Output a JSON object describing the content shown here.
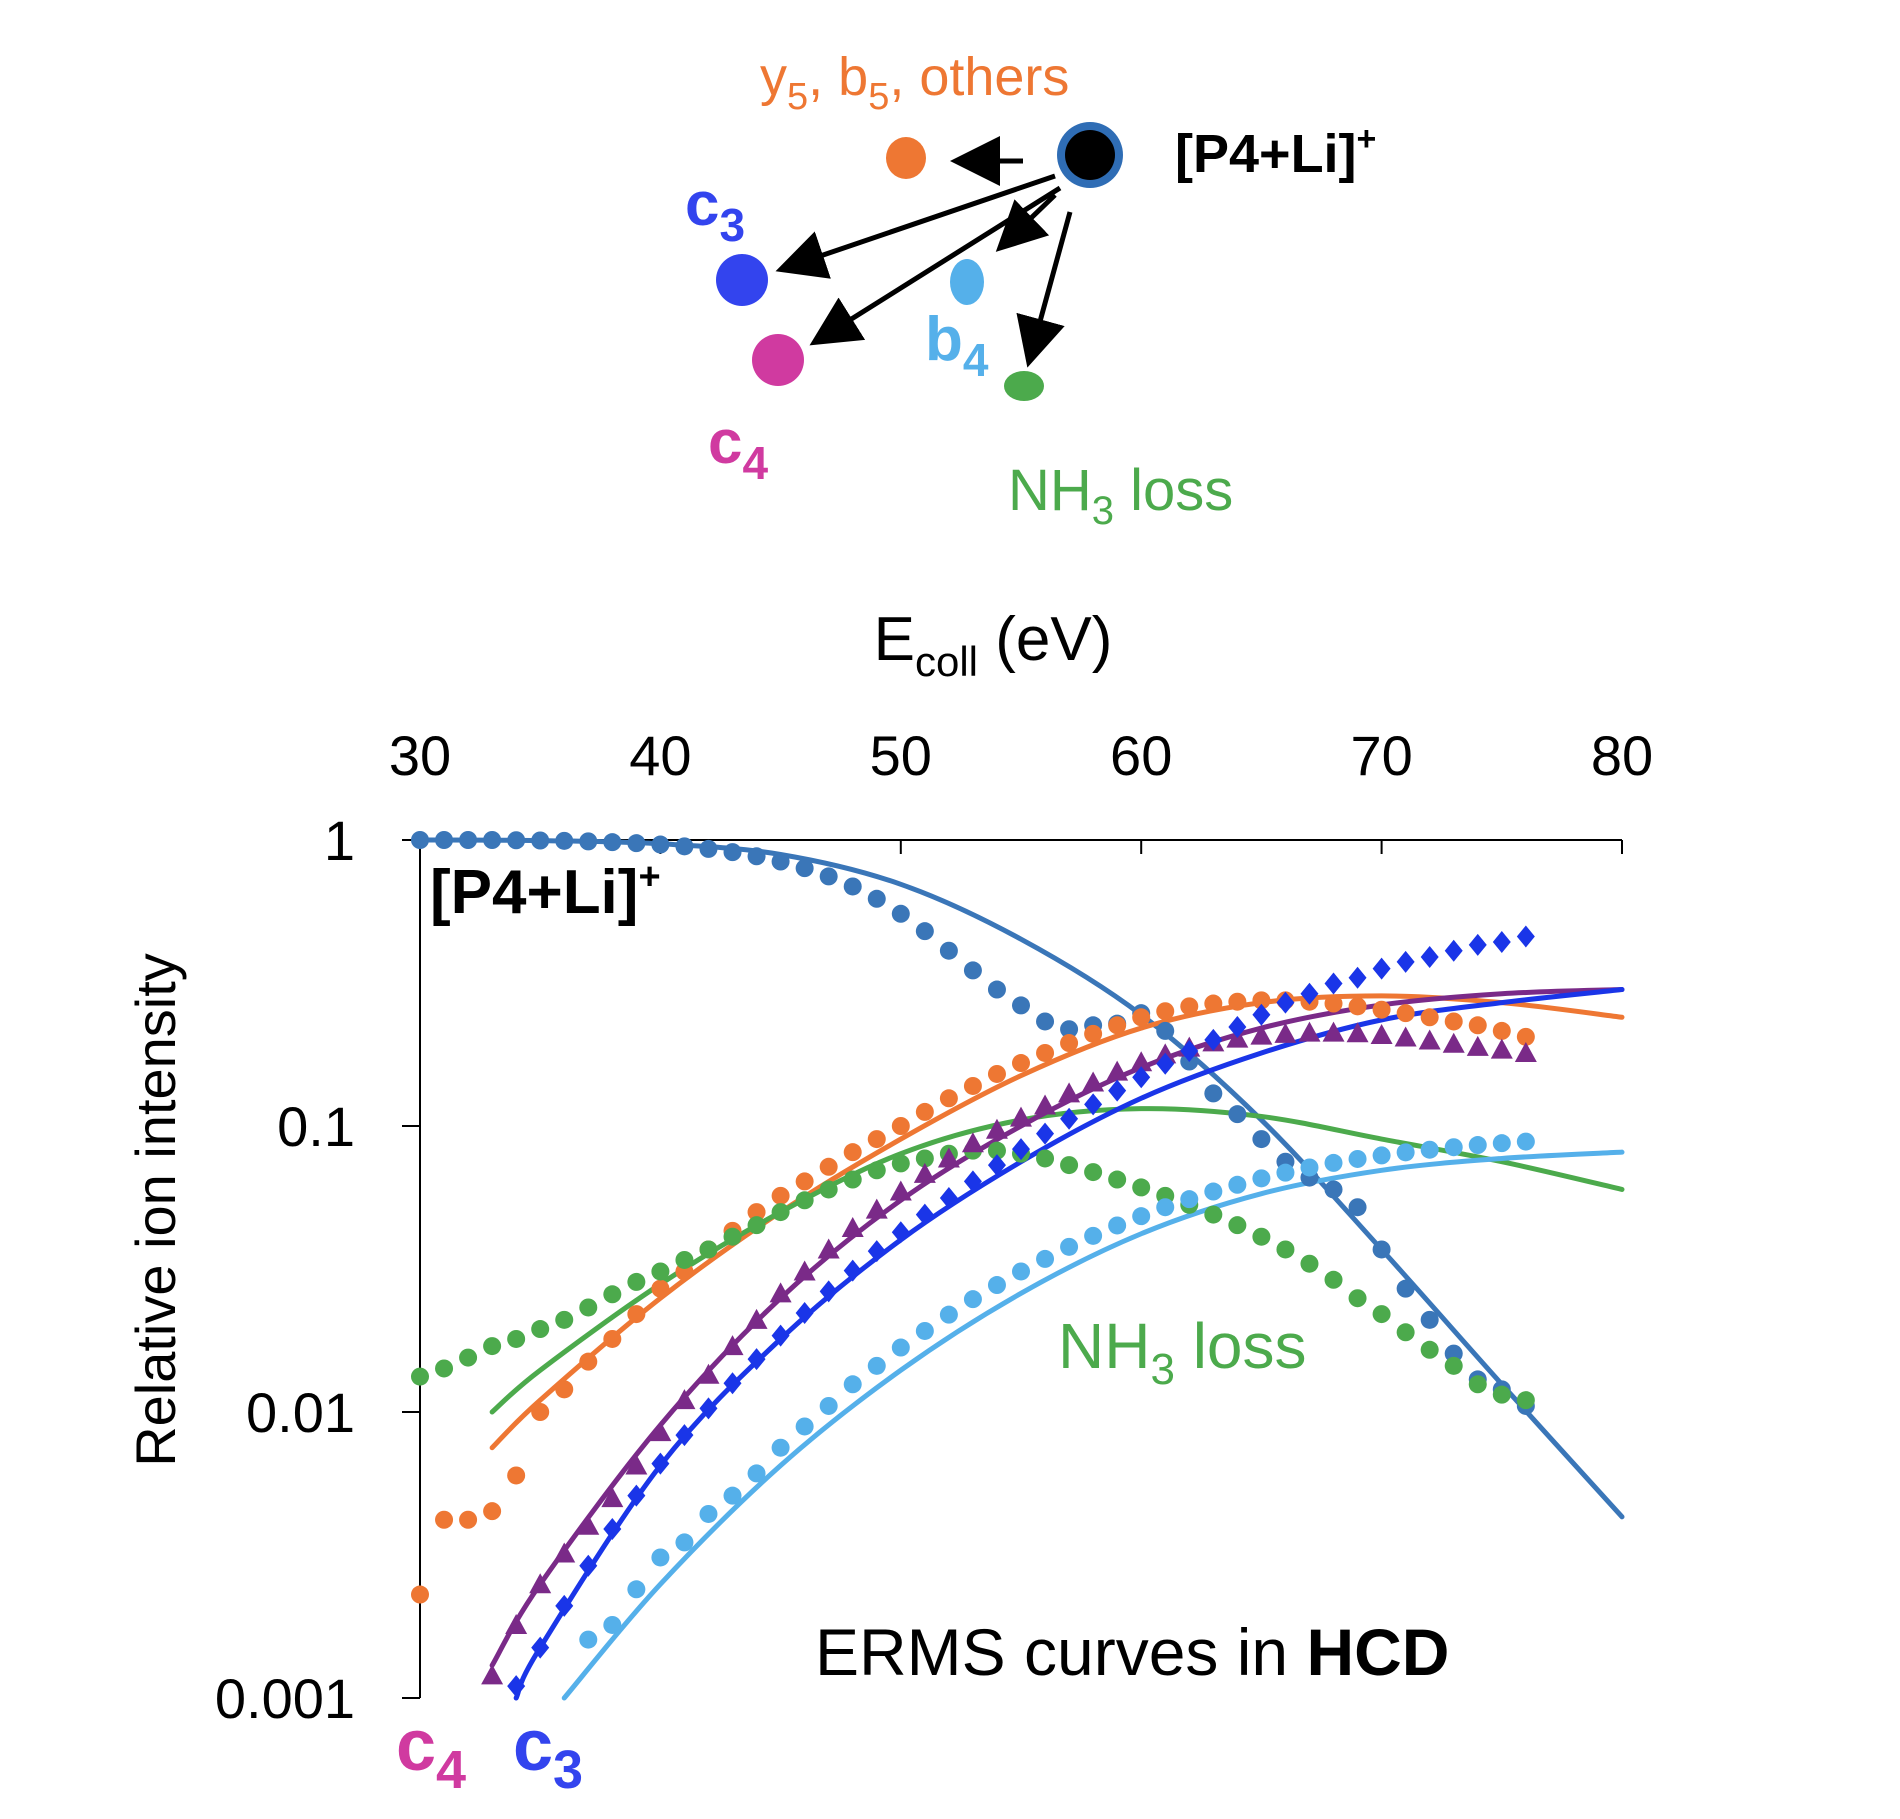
{
  "scheme": {
    "parent": {
      "label": "[P4+Li]",
      "charge": "+",
      "color": "#000000",
      "ring": "#2f6db5"
    },
    "products": [
      {
        "id": "others",
        "label": "y",
        "sub1": "5",
        "mid": ", b",
        "sub2": "5",
        "tail": ", others",
        "color": "#ee7733"
      },
      {
        "id": "c3",
        "label": "c",
        "sub": "3",
        "color": "#3344ee"
      },
      {
        "id": "b4",
        "label": "b",
        "sub": "4",
        "color": "#55b0ea"
      },
      {
        "id": "c4",
        "label": "c",
        "sub": "4",
        "color": "#d03aa0"
      },
      {
        "id": "nh3",
        "label": "NH",
        "sub": "3",
        "tail": " loss",
        "color": "#4caa4c"
      }
    ]
  },
  "chart_data": {
    "type": "scatter",
    "title": "",
    "xlabel": {
      "main": "E",
      "sub": "coll",
      "tail": " (eV)"
    },
    "ylabel": "Relative ion intensity",
    "xlim": [
      30,
      80
    ],
    "ylim": [
      0.001,
      1
    ],
    "yscale": "log",
    "x_axis_position": "top",
    "x_ticks": [
      "30",
      "40",
      "50",
      "60",
      "70",
      "80"
    ],
    "y_ticks": [
      "1",
      "0.1",
      "0.01",
      "0.001"
    ],
    "annotation": {
      "text": "ERMS curves in ",
      "bold": "HCD"
    },
    "labels": {
      "parent": {
        "text": "[P4+Li]",
        "sup": "+"
      },
      "nh3": {
        "main": "NH",
        "sub": "3",
        "tail": " loss"
      },
      "c4": {
        "main": "c",
        "sub": "4"
      },
      "c3": {
        "main": "c",
        "sub": "3"
      }
    },
    "series": [
      {
        "id": "parent",
        "color": "#3a76b8",
        "marker": "circle",
        "x": [
          30,
          31,
          32,
          33,
          34,
          35,
          36,
          37,
          38,
          39,
          40,
          41,
          42,
          43,
          44,
          45,
          46,
          47,
          48,
          49,
          50,
          51,
          52,
          53,
          54,
          55,
          56,
          57,
          58,
          59,
          60,
          61,
          62,
          63,
          64,
          65,
          66,
          67,
          68,
          69,
          70,
          71,
          72,
          73,
          74,
          75,
          76
        ],
        "values": [
          1,
          1,
          1,
          1,
          0.998,
          0.996,
          0.993,
          0.989,
          0.983,
          0.975,
          0.964,
          0.95,
          0.931,
          0.907,
          0.877,
          0.841,
          0.797,
          0.746,
          0.688,
          0.623,
          0.552,
          0.48,
          0.41,
          0.35,
          0.3,
          0.264,
          0.232,
          0.218,
          0.225,
          0.228,
          0.248,
          0.215,
          0.168,
          0.13,
          0.11,
          0.09,
          0.075,
          0.066,
          0.06,
          0.052,
          0.037,
          0.027,
          0.021,
          0.016,
          0.013,
          0.012,
          0.0105
        ],
        "fit": {
          "x": [
            30,
            35,
            40,
            45,
            50,
            55,
            60,
            65,
            70,
            75,
            80
          ],
          "values": [
            1,
            0.995,
            0.97,
            0.89,
            0.7,
            0.45,
            0.245,
            0.105,
            0.037,
            0.0125,
            0.0043
          ]
        }
      },
      {
        "id": "others",
        "color": "#ee7733",
        "marker": "circle",
        "x": [
          30,
          31,
          32,
          33,
          34,
          35,
          36,
          37,
          38,
          39,
          40,
          41,
          42,
          43,
          44,
          45,
          46,
          47,
          48,
          49,
          50,
          51,
          52,
          53,
          54,
          55,
          56,
          57,
          58,
          59,
          60,
          61,
          62,
          63,
          64,
          65,
          66,
          67,
          68,
          69,
          70,
          71,
          72,
          73,
          74,
          75,
          76
        ],
        "values": [
          0.0023,
          0.0042,
          0.0042,
          0.0045,
          0.006,
          0.01,
          0.012,
          0.015,
          0.018,
          0.022,
          0.027,
          0.031,
          0.037,
          0.043,
          0.05,
          0.057,
          0.064,
          0.072,
          0.081,
          0.09,
          0.1,
          0.112,
          0.125,
          0.138,
          0.152,
          0.166,
          0.18,
          0.195,
          0.21,
          0.225,
          0.24,
          0.252,
          0.262,
          0.268,
          0.272,
          0.275,
          0.275,
          0.272,
          0.268,
          0.262,
          0.255,
          0.248,
          0.24,
          0.232,
          0.225,
          0.215,
          0.205
        ],
        "fit": {
          "x": [
            33,
            35,
            40,
            45,
            50,
            55,
            60,
            65,
            70,
            75,
            80
          ],
          "values": [
            0.0075,
            0.011,
            0.025,
            0.05,
            0.09,
            0.15,
            0.22,
            0.27,
            0.285,
            0.27,
            0.24
          ]
        }
      },
      {
        "id": "nh3",
        "color": "#4caa4c",
        "marker": "circle",
        "x": [
          30,
          31,
          32,
          33,
          34,
          35,
          36,
          37,
          38,
          39,
          40,
          41,
          42,
          43,
          44,
          45,
          46,
          47,
          48,
          49,
          50,
          51,
          52,
          53,
          54,
          55,
          56,
          57,
          58,
          59,
          60,
          61,
          62,
          63,
          64,
          65,
          66,
          67,
          68,
          69,
          70,
          71,
          72,
          73,
          74,
          75,
          76
        ],
        "values": [
          0.0133,
          0.0142,
          0.0155,
          0.017,
          0.018,
          0.0195,
          0.021,
          0.0232,
          0.0258,
          0.0285,
          0.031,
          0.034,
          0.037,
          0.041,
          0.045,
          0.05,
          0.055,
          0.06,
          0.065,
          0.07,
          0.074,
          0.077,
          0.08,
          0.082,
          0.082,
          0.08,
          0.077,
          0.073,
          0.069,
          0.065,
          0.061,
          0.057,
          0.053,
          0.049,
          0.045,
          0.041,
          0.037,
          0.033,
          0.029,
          0.025,
          0.022,
          0.019,
          0.0165,
          0.0145,
          0.0125,
          0.0115,
          0.011
        ],
        "fit": {
          "x": [
            33,
            35,
            40,
            45,
            50,
            55,
            60,
            65,
            70,
            75,
            80
          ],
          "values": [
            0.01,
            0.014,
            0.028,
            0.05,
            0.08,
            0.105,
            0.115,
            0.108,
            0.09,
            0.075,
            0.06
          ]
        }
      },
      {
        "id": "c4",
        "color": "#7a2a88",
        "marker": "triangle",
        "x": [
          33,
          34,
          35,
          36,
          37,
          38,
          39,
          40,
          41,
          42,
          43,
          44,
          45,
          46,
          47,
          48,
          49,
          50,
          51,
          52,
          53,
          54,
          55,
          56,
          57,
          58,
          59,
          60,
          61,
          62,
          63,
          64,
          65,
          66,
          67,
          68,
          69,
          70,
          71,
          72,
          73,
          74,
          75,
          76
        ],
        "values": [
          0.0012,
          0.0018,
          0.0025,
          0.0032,
          0.004,
          0.005,
          0.0065,
          0.0085,
          0.011,
          0.0135,
          0.017,
          0.021,
          0.026,
          0.031,
          0.037,
          0.044,
          0.051,
          0.059,
          0.068,
          0.077,
          0.087,
          0.097,
          0.107,
          0.118,
          0.13,
          0.142,
          0.155,
          0.167,
          0.178,
          0.188,
          0.196,
          0.202,
          0.207,
          0.21,
          0.212,
          0.212,
          0.211,
          0.208,
          0.204,
          0.199,
          0.194,
          0.189,
          0.185,
          0.18
        ],
        "fit": {
          "x": [
            33,
            35,
            40,
            45,
            50,
            55,
            60,
            65,
            70,
            75,
            80
          ],
          "values": [
            0.0013,
            0.0025,
            0.009,
            0.025,
            0.055,
            0.1,
            0.16,
            0.22,
            0.265,
            0.29,
            0.3
          ]
        }
      },
      {
        "id": "c3",
        "color": "#1a35e8",
        "marker": "diamond",
        "x": [
          34,
          35,
          36,
          37,
          38,
          39,
          40,
          41,
          42,
          43,
          44,
          45,
          46,
          47,
          48,
          49,
          50,
          51,
          52,
          53,
          54,
          55,
          56,
          57,
          58,
          59,
          60,
          61,
          62,
          63,
          64,
          65,
          66,
          67,
          68,
          69,
          70,
          71,
          72,
          73,
          74,
          75,
          76
        ],
        "values": [
          0.0011,
          0.0015,
          0.0021,
          0.0029,
          0.0039,
          0.0051,
          0.0066,
          0.0083,
          0.0103,
          0.0126,
          0.0153,
          0.0185,
          0.0222,
          0.0264,
          0.0312,
          0.0365,
          0.0425,
          0.049,
          0.056,
          0.064,
          0.073,
          0.083,
          0.094,
          0.106,
          0.119,
          0.133,
          0.148,
          0.165,
          0.183,
          0.2,
          0.222,
          0.245,
          0.27,
          0.29,
          0.315,
          0.33,
          0.355,
          0.375,
          0.39,
          0.41,
          0.43,
          0.44,
          0.46
        ],
        "fit": {
          "x": [
            34,
            35,
            40,
            45,
            50,
            55,
            60,
            65,
            70,
            75,
            80
          ],
          "values": [
            0.001,
            0.0015,
            0.0065,
            0.018,
            0.04,
            0.075,
            0.125,
            0.18,
            0.235,
            0.27,
            0.3
          ]
        }
      },
      {
        "id": "b4",
        "color": "#55b0ea",
        "marker": "circle",
        "x": [
          37,
          38,
          39,
          40,
          41,
          42,
          43,
          44,
          45,
          46,
          47,
          48,
          49,
          50,
          51,
          52,
          53,
          54,
          55,
          56,
          57,
          58,
          59,
          60,
          61,
          62,
          63,
          64,
          65,
          66,
          67,
          68,
          69,
          70,
          71,
          72,
          73,
          74,
          75,
          76
        ],
        "values": [
          0.0016,
          0.0018,
          0.0024,
          0.0031,
          0.0035,
          0.0044,
          0.0051,
          0.0061,
          0.0075,
          0.0089,
          0.0105,
          0.0125,
          0.0145,
          0.0168,
          0.0192,
          0.0219,
          0.0248,
          0.0278,
          0.031,
          0.0343,
          0.0378,
          0.0413,
          0.0449,
          0.0484,
          0.052,
          0.0555,
          0.059,
          0.0623,
          0.0656,
          0.0687,
          0.0716,
          0.0743,
          0.0767,
          0.0789,
          0.0809,
          0.0826,
          0.0843,
          0.0858,
          0.0871,
          0.0882
        ],
        "fit": {
          "x": [
            36,
            40,
            45,
            50,
            55,
            60,
            65,
            70,
            75,
            80
          ],
          "values": [
            0.001,
            0.0025,
            0.0065,
            0.014,
            0.026,
            0.042,
            0.058,
            0.07,
            0.077,
            0.081
          ]
        }
      }
    ]
  }
}
